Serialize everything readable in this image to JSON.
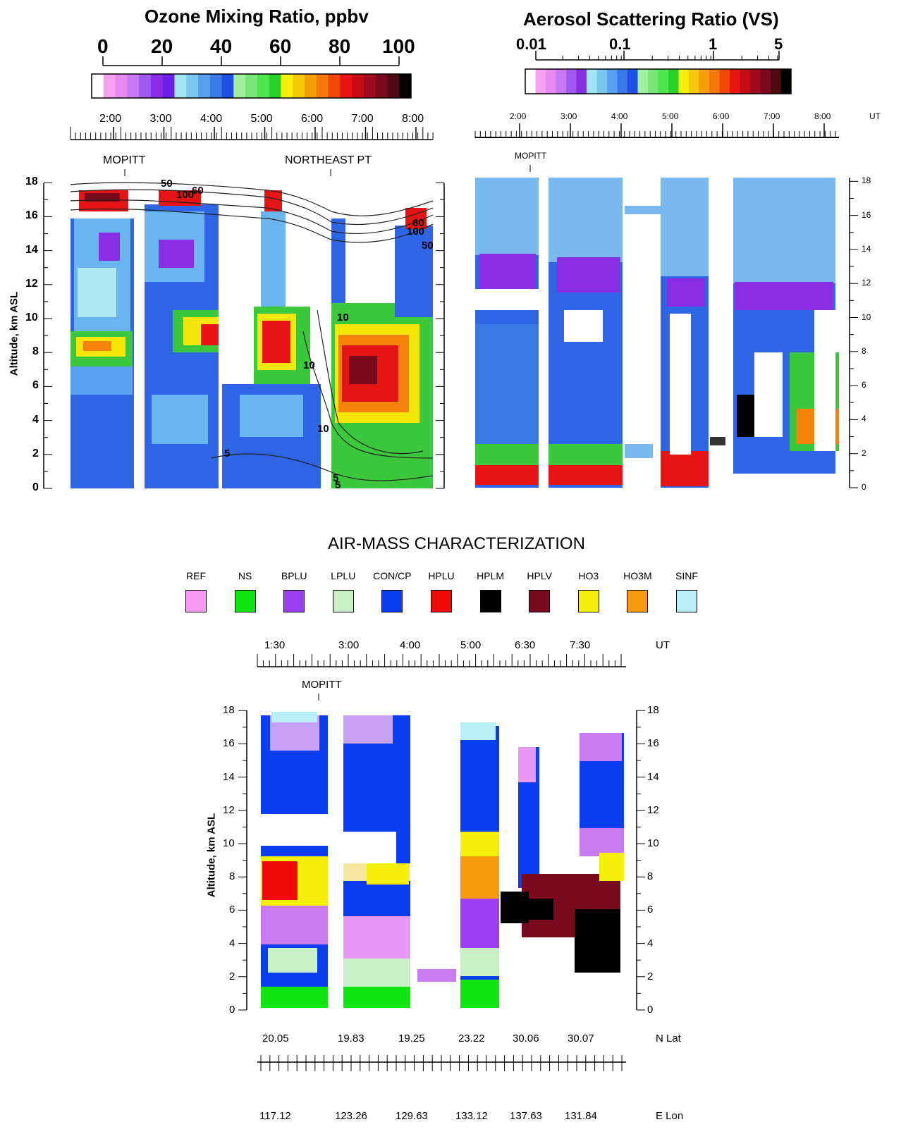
{
  "ozone": {
    "title": "Ozone Mixing Ratio, ppbv",
    "colorbar_ticks": [
      "0",
      "20",
      "40",
      "60",
      "80",
      "100"
    ],
    "time_ticks": [
      "2:00",
      "3:00",
      "4:00",
      "5:00",
      "6:00",
      "7:00",
      "8:00"
    ],
    "markers": [
      "MOPITT",
      "NORTHEAST PT"
    ],
    "ylabel": "Altitude, km ASL",
    "yticks": [
      "0",
      "2",
      "4",
      "6",
      "8",
      "10",
      "12",
      "14",
      "16",
      "18"
    ],
    "contour_labels": [
      "50",
      "100",
      "60",
      "5",
      "10",
      "10",
      "10",
      "5",
      "5",
      "100",
      "60",
      "50"
    ]
  },
  "aerosol": {
    "title": "Aerosol Scattering Ratio (VS)",
    "colorbar_ticks": [
      "0.01",
      "0.1",
      "1",
      "5"
    ],
    "time_ticks": [
      "2:00",
      "3:00",
      "4:00",
      "5:00",
      "6:00",
      "7:00",
      "8:00"
    ],
    "time_unit": "UT",
    "marker": "MOPITT",
    "yticks": [
      "0",
      "2",
      "4",
      "6",
      "8",
      "10",
      "12",
      "14",
      "16",
      "18"
    ]
  },
  "airmass": {
    "title": "AIR-MASS CHARACTERIZATION",
    "legend": [
      {
        "name": "REF",
        "color": "#f59af0"
      },
      {
        "name": "NS",
        "color": "#12e612"
      },
      {
        "name": "BPLU",
        "color": "#9b3ff0"
      },
      {
        "name": "LPLU",
        "color": "#c8f0c8"
      },
      {
        "name": "CON/CP",
        "color": "#0a3cf0"
      },
      {
        "name": "HPLU",
        "color": "#f00a0a"
      },
      {
        "name": "HPLM",
        "color": "#000000"
      },
      {
        "name": "HPLV",
        "color": "#7a0a1e"
      },
      {
        "name": "HO3",
        "color": "#f5f00a"
      },
      {
        "name": "HO3M",
        "color": "#f59a0a"
      },
      {
        "name": "SINF",
        "color": "#b8f0f5"
      }
    ],
    "time_ticks": [
      "1:30",
      "3:00",
      "4:00",
      "5:00",
      "6:30",
      "7:30"
    ],
    "time_unit": "UT",
    "marker": "MOPITT",
    "ylabel": "Altitude, km ASL",
    "yticks": [
      "0",
      "2",
      "4",
      "6",
      "8",
      "10",
      "12",
      "14",
      "16",
      "18"
    ],
    "lat_ticks": [
      "20.05",
      "19.83",
      "19.25",
      "23.22",
      "30.06",
      "30.07"
    ],
    "lat_label": "N Lat",
    "lon_ticks": [
      "117.12",
      "123.26",
      "129.63",
      "133.12",
      "137.63",
      "131.84"
    ],
    "lon_label": "E Lon"
  },
  "chart_data": [
    {
      "type": "heatmap",
      "title": "Ozone Mixing Ratio, ppbv",
      "xlabel": "UT",
      "ylabel": "Altitude, km ASL",
      "ylim": [
        0,
        18
      ],
      "colorbar_range": [
        0,
        100
      ]
    },
    {
      "type": "heatmap",
      "title": "Aerosol Scattering Ratio (VS)",
      "xlabel": "UT",
      "ylabel": "",
      "ylim": [
        0,
        18
      ],
      "colorbar_range": [
        0.01,
        5
      ],
      "colorbar_scale": "log"
    },
    {
      "type": "heatmap",
      "title": "AIR-MASS CHARACTERIZATION",
      "xlabel": "UT",
      "ylabel": "Altitude, km ASL",
      "ylim": [
        0,
        18
      ],
      "categories": [
        "REF",
        "NS",
        "BPLU",
        "LPLU",
        "CON/CP",
        "HPLU",
        "HPLM",
        "HPLV",
        "HO3",
        "HO3M",
        "SINF"
      ]
    }
  ]
}
